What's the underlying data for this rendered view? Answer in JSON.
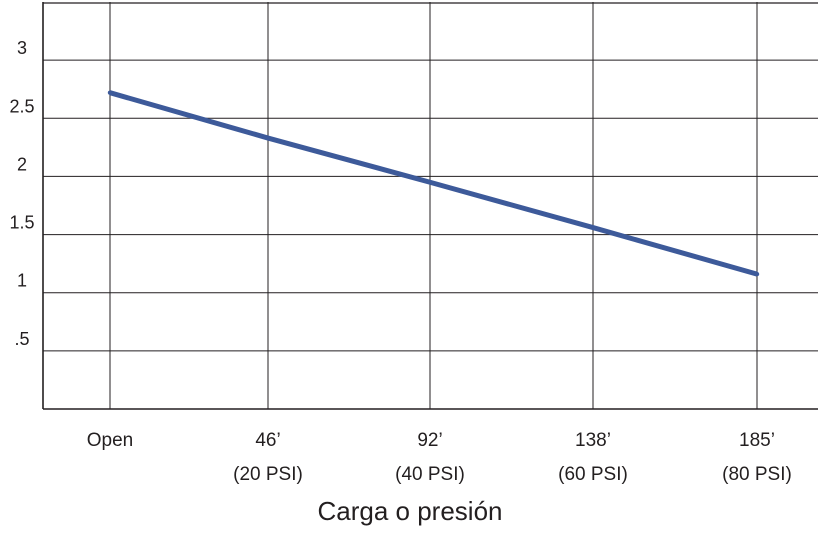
{
  "chart_data": {
    "type": "line",
    "categories": [
      "Open",
      "46’",
      "92’",
      "138’",
      "185’"
    ],
    "category_sublabels": [
      "",
      "(20 PSI)",
      "(40 PSI)",
      "(60 PSI)",
      "(80 PSI)"
    ],
    "series": [
      {
        "values": [
          2.72,
          2.33,
          1.95,
          1.56,
          1.16
        ]
      }
    ],
    "y_ticks": [
      ".5",
      "1",
      "1.5",
      "2",
      "2.5",
      "3"
    ],
    "y_tick_values": [
      0.5,
      1,
      1.5,
      2,
      2.5,
      3
    ],
    "ylim": [
      0,
      3.5
    ],
    "title": "",
    "xlabel": "Carga o presión",
    "ylabel": "",
    "grid": true,
    "legend": "none",
    "colors": {
      "line": "#3d5a9a",
      "grid": "#231f20",
      "text": "#231f20"
    }
  }
}
